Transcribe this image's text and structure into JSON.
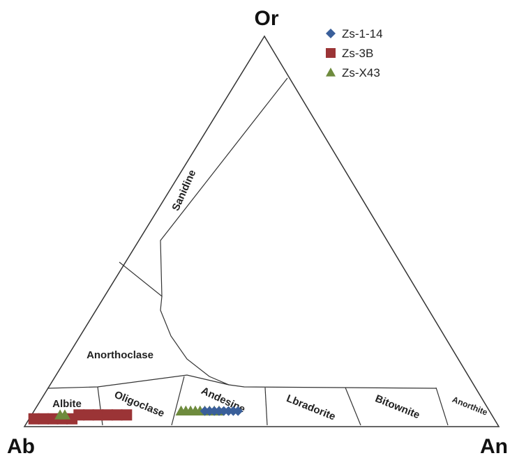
{
  "chart_data": {
    "type": "scatter",
    "subtype": "ternary",
    "vertices": {
      "top": "Or",
      "left": "Ab",
      "right": "An"
    },
    "fields": [
      "Sanidine",
      "Anorthoclase",
      "Albite",
      "Oligoclase",
      "Andesine",
      "Lbradorite",
      "Bitownite",
      "Anorthite"
    ],
    "legend_placement": "top-right",
    "series": [
      {
        "name": "Zs-1-14",
        "marker": "diamond",
        "color": "#3a5f9a",
        "points": [
          [
            60,
            36,
            4
          ],
          [
            59,
            37,
            4
          ],
          [
            58,
            38,
            4
          ],
          [
            57,
            39,
            4
          ],
          [
            56,
            40,
            4
          ],
          [
            55,
            41,
            4
          ],
          [
            54,
            42,
            4
          ],
          [
            53,
            43,
            4
          ]
        ]
      },
      {
        "name": "Zs-3B",
        "marker": "square",
        "color": "#9b3436",
        "points": [
          [
            97,
            1,
            2
          ],
          [
            95,
            3,
            2
          ],
          [
            93,
            5,
            2
          ],
          [
            91,
            7,
            2
          ],
          [
            89,
            9,
            2
          ],
          [
            87,
            10,
            3
          ],
          [
            85,
            12,
            3
          ],
          [
            83,
            14,
            3
          ],
          [
            81,
            16,
            3
          ],
          [
            79,
            18,
            3
          ],
          [
            77,
            20,
            3
          ]
        ]
      },
      {
        "name": "Zs-X43",
        "marker": "triangle",
        "color": "#6e8b3d",
        "points": [
          [
            91,
            6,
            3
          ],
          [
            90,
            7,
            3
          ],
          [
            65,
            31,
            4
          ],
          [
            64,
            32,
            4
          ],
          [
            63,
            33,
            4
          ],
          [
            62,
            34,
            4
          ],
          [
            61,
            35,
            4
          ],
          [
            60,
            36,
            4
          ],
          [
            59,
            37,
            4
          ],
          [
            58,
            38,
            4
          ],
          [
            57,
            39,
            4
          ]
        ]
      }
    ]
  }
}
